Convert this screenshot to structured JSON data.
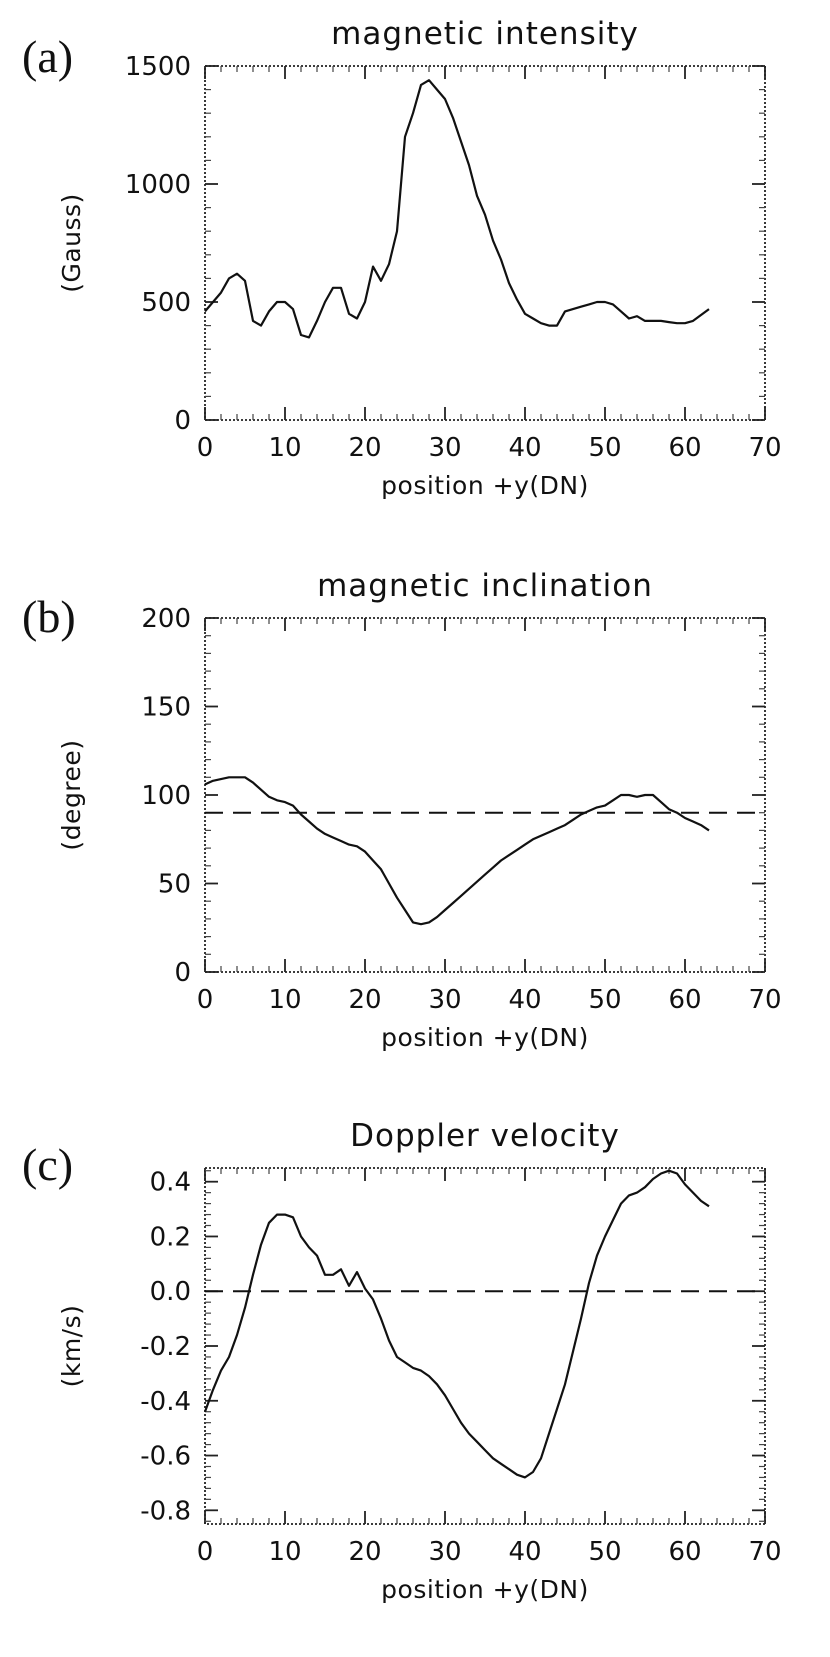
{
  "chart_data": [
    {
      "type": "line",
      "panel_label": "(a)",
      "title": "magnetic intensity",
      "xlabel": "position +y(DN)",
      "ylabel": "(Gauss)",
      "xlim": [
        0,
        70
      ],
      "ylim": [
        0,
        1500
      ],
      "xticks": [
        "0",
        "10",
        "20",
        "30",
        "40",
        "50",
        "60",
        "70"
      ],
      "yticks": [
        "0",
        "500",
        "1000",
        "1500"
      ],
      "reference_line": null,
      "series": [
        {
          "name": "magnetic intensity",
          "x": [
            0,
            1,
            2,
            3,
            4,
            5,
            6,
            7,
            8,
            9,
            10,
            11,
            12,
            13,
            14,
            15,
            16,
            17,
            18,
            19,
            20,
            21,
            22,
            23,
            24,
            25,
            26,
            27,
            28,
            29,
            30,
            31,
            32,
            33,
            34,
            35,
            36,
            37,
            38,
            39,
            40,
            41,
            42,
            43,
            44,
            45,
            46,
            47,
            48,
            49,
            50,
            51,
            52,
            53,
            54,
            55,
            56,
            57,
            58,
            59,
            60,
            61,
            62,
            63
          ],
          "y": [
            460,
            500,
            540,
            600,
            620,
            590,
            420,
            400,
            460,
            500,
            500,
            470,
            360,
            350,
            420,
            500,
            560,
            560,
            450,
            430,
            500,
            650,
            590,
            660,
            800,
            1200,
            1300,
            1420,
            1440,
            1400,
            1360,
            1280,
            1180,
            1080,
            950,
            870,
            760,
            680,
            580,
            510,
            450,
            430,
            410,
            400,
            400,
            460,
            470,
            480,
            490,
            500,
            500,
            490,
            460,
            430,
            440,
            420,
            420,
            420,
            415,
            410,
            410,
            420,
            445,
            470
          ]
        }
      ]
    },
    {
      "type": "line",
      "panel_label": "(b)",
      "title": "magnetic inclination",
      "xlabel": "position +y(DN)",
      "ylabel": "(degree)",
      "xlim": [
        0,
        70
      ],
      "ylim": [
        0,
        200
      ],
      "xticks": [
        "0",
        "10",
        "20",
        "30",
        "40",
        "50",
        "60",
        "70"
      ],
      "yticks": [
        "0",
        "50",
        "100",
        "150",
        "200"
      ],
      "reference_line": 90,
      "series": [
        {
          "name": "magnetic inclination",
          "x": [
            0,
            1,
            2,
            3,
            4,
            5,
            6,
            7,
            8,
            9,
            10,
            11,
            12,
            13,
            14,
            15,
            16,
            17,
            18,
            19,
            20,
            21,
            22,
            23,
            24,
            25,
            26,
            27,
            28,
            29,
            30,
            31,
            32,
            33,
            34,
            35,
            36,
            37,
            38,
            39,
            40,
            41,
            42,
            43,
            44,
            45,
            46,
            47,
            48,
            49,
            50,
            51,
            52,
            53,
            54,
            55,
            56,
            57,
            58,
            59,
            60,
            61,
            62,
            63
          ],
          "y": [
            106,
            108,
            109,
            110,
            110,
            110,
            107,
            103,
            99,
            97,
            96,
            94,
            89,
            85,
            81,
            78,
            76,
            74,
            72,
            71,
            68,
            63,
            58,
            50,
            42,
            35,
            28,
            27,
            28,
            31,
            35,
            39,
            43,
            47,
            51,
            55,
            59,
            63,
            66,
            69,
            72,
            75,
            77,
            79,
            81,
            83,
            86,
            89,
            91,
            93,
            94,
            97,
            100,
            100,
            99,
            100,
            100,
            96,
            92,
            90,
            87,
            85,
            83,
            80
          ]
        }
      ]
    },
    {
      "type": "line",
      "panel_label": "(c)",
      "title": "Doppler velocity",
      "xlabel": "position +y(DN)",
      "ylabel": "(km/s)",
      "xlim": [
        0,
        70
      ],
      "ylim": [
        -0.85,
        0.45
      ],
      "xticks": [
        "0",
        "10",
        "20",
        "30",
        "40",
        "50",
        "60",
        "70"
      ],
      "yticks": [
        "-0.8",
        "-0.6",
        "-0.4",
        "-0.2",
        "0.0",
        "0.2",
        "0.4"
      ],
      "reference_line": 0.0,
      "series": [
        {
          "name": "Doppler velocity",
          "x": [
            0,
            1,
            2,
            3,
            4,
            5,
            6,
            7,
            8,
            9,
            10,
            11,
            12,
            13,
            14,
            15,
            16,
            17,
            18,
            19,
            20,
            21,
            22,
            23,
            24,
            25,
            26,
            27,
            28,
            29,
            30,
            31,
            32,
            33,
            34,
            35,
            36,
            37,
            38,
            39,
            40,
            41,
            42,
            43,
            44,
            45,
            46,
            47,
            48,
            49,
            50,
            51,
            52,
            53,
            54,
            55,
            56,
            57,
            58,
            59,
            60,
            61,
            62,
            63
          ],
          "y": [
            -0.44,
            -0.36,
            -0.29,
            -0.24,
            -0.16,
            -0.06,
            0.06,
            0.17,
            0.25,
            0.28,
            0.28,
            0.27,
            0.2,
            0.16,
            0.13,
            0.06,
            0.06,
            0.08,
            0.02,
            0.07,
            0.01,
            -0.03,
            -0.1,
            -0.18,
            -0.24,
            -0.26,
            -0.28,
            -0.29,
            -0.31,
            -0.34,
            -0.38,
            -0.43,
            -0.48,
            -0.52,
            -0.55,
            -0.58,
            -0.61,
            -0.63,
            -0.65,
            -0.67,
            -0.68,
            -0.66,
            -0.61,
            -0.52,
            -0.43,
            -0.34,
            -0.22,
            -0.1,
            0.03,
            0.13,
            0.2,
            0.26,
            0.32,
            0.35,
            0.36,
            0.38,
            0.41,
            0.43,
            0.44,
            0.43,
            0.39,
            0.36,
            0.33,
            0.31
          ]
        }
      ]
    }
  ]
}
